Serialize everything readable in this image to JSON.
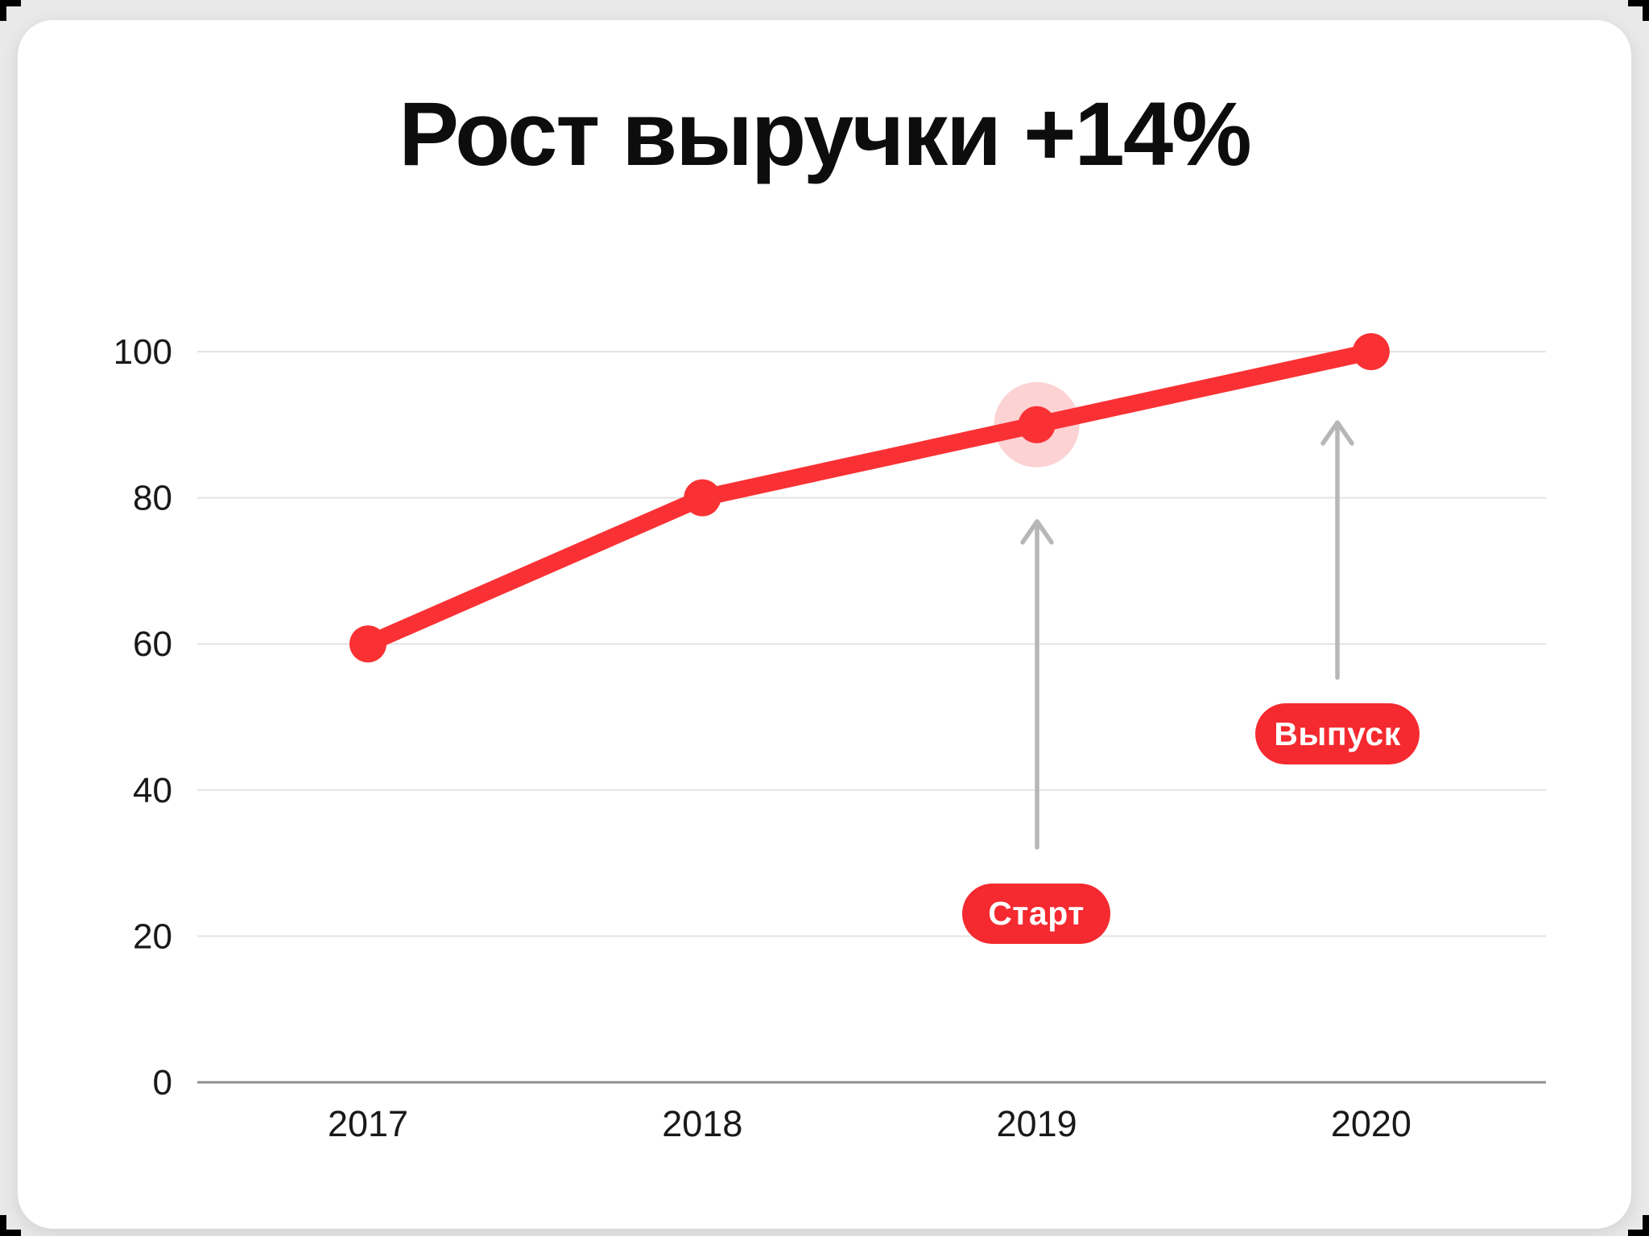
{
  "title": "Рост выручки +14%",
  "chart_data": {
    "type": "line",
    "title": "Рост выручки +14%",
    "categories": [
      "2017",
      "2018",
      "2019",
      "2020"
    ],
    "values": [
      60,
      80,
      90,
      100
    ],
    "xlabel": "",
    "ylabel": "",
    "ylim": [
      0,
      100
    ],
    "yticks": [
      0,
      20,
      40,
      60,
      80,
      100
    ],
    "grid": true,
    "legend": "none",
    "line_color": "#f93134",
    "point_color": "#f93134",
    "highlight": {
      "category": "2019",
      "halo_color": "#fdd2d3"
    },
    "axis_color": "#8f8f8f",
    "gridline_color": "#e3e3e3",
    "tick_label_color": "#191919",
    "arrow_color": "#b7b7b7",
    "annotations": [
      {
        "label": "Старт",
        "target_category": "2019"
      },
      {
        "label": "Выпуск",
        "target_category": "2020"
      }
    ],
    "badge_color": "#f42a30",
    "badge_text_color": "#ffffff"
  }
}
